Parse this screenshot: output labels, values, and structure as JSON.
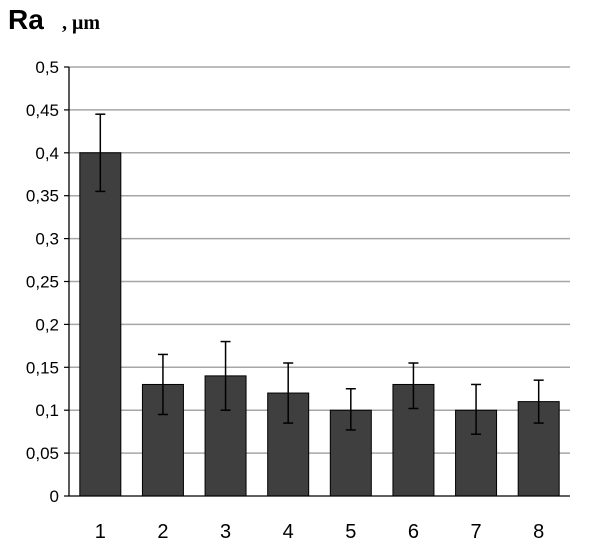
{
  "chart_data": {
    "type": "bar",
    "ylabel": "Ra",
    "ylabel_unit": ", μm",
    "xlabel": "",
    "categories": [
      "1",
      "2",
      "3",
      "4",
      "5",
      "6",
      "7",
      "8"
    ],
    "values": [
      0.4,
      0.13,
      0.14,
      0.12,
      0.1,
      0.13,
      0.1,
      0.11
    ],
    "error_upper": [
      0.445,
      0.165,
      0.18,
      0.155,
      0.125,
      0.155,
      0.13,
      0.135
    ],
    "error_lower": [
      0.355,
      0.095,
      0.1,
      0.085,
      0.077,
      0.102,
      0.072,
      0.085
    ],
    "ylim": [
      0,
      0.5
    ],
    "yticks": [
      {
        "value": 0,
        "label": "0"
      },
      {
        "value": 0.05,
        "label": "0,05"
      },
      {
        "value": 0.1,
        "label": "0,1"
      },
      {
        "value": 0.15,
        "label": "0,15"
      },
      {
        "value": 0.2,
        "label": "0,2"
      },
      {
        "value": 0.25,
        "label": "0,25"
      },
      {
        "value": 0.3,
        "label": "0,3"
      },
      {
        "value": 0.35,
        "label": "0,35"
      },
      {
        "value": 0.4,
        "label": "0,4"
      },
      {
        "value": 0.45,
        "label": "0,45"
      },
      {
        "value": 0.5,
        "label": "0,5"
      }
    ],
    "grid": true,
    "legend": "none",
    "bar_color": "#3f3f3f",
    "grid_color": "#a6a6a6"
  }
}
